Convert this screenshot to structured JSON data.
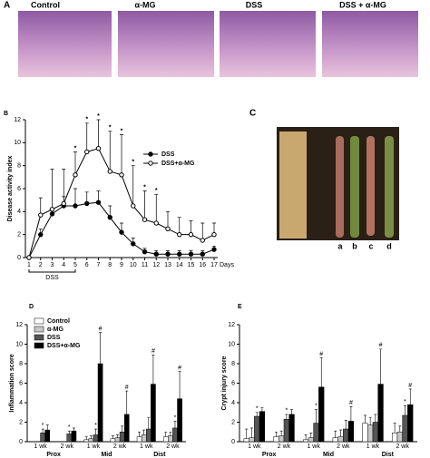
{
  "panels": {
    "A": {
      "label": "A",
      "captions": [
        "Control",
        "α-MG",
        "DSS",
        "DSS + α-MG"
      ]
    },
    "C": {
      "label": "C",
      "lanes": [
        "a",
        "b",
        "c",
        "d"
      ]
    }
  },
  "chart_data": [
    {
      "type": "line",
      "panel": "B",
      "xlabel": "Days",
      "ylabel": "Disease activity index",
      "annotation": "DSS",
      "x": [
        1,
        2,
        3,
        4,
        5,
        6,
        7,
        8,
        9,
        10,
        11,
        12,
        13,
        14,
        15,
        16,
        17
      ],
      "xlim": [
        1,
        17
      ],
      "xticks": [
        1,
        2,
        3,
        4,
        5,
        6,
        7,
        8,
        9,
        10,
        11,
        12,
        13,
        14,
        15,
        16,
        17
      ],
      "ylim": [
        0,
        12
      ],
      "yticks": [
        0,
        2,
        4,
        6,
        8,
        10,
        12
      ],
      "grid": false,
      "legend": "upper right",
      "series": [
        {
          "name": "DSS",
          "color": "#000000",
          "marker": "filled",
          "values": [
            0,
            2,
            3.8,
            4.5,
            4.5,
            4.7,
            4.8,
            3.5,
            2.2,
            1.2,
            0.5,
            0.3,
            0.3,
            0.3,
            0.3,
            0.3,
            0.7
          ],
          "errors": [
            0,
            0.5,
            0.5,
            0.8,
            1.5,
            1,
            1,
            1,
            0.8,
            0.5,
            0.3,
            0.3,
            0.3,
            0.3,
            0.3,
            0.3,
            0.3
          ],
          "markers": [
            null,
            null,
            null,
            null,
            null,
            null,
            null,
            null,
            null,
            null,
            null,
            null,
            null,
            null,
            null,
            null,
            null
          ]
        },
        {
          "name": "DSS+α-MG",
          "color": "#000000",
          "marker": "open",
          "values": [
            0,
            3.7,
            4.2,
            4.7,
            7.2,
            9.2,
            9.5,
            7.5,
            7.2,
            4.5,
            3.3,
            3.0,
            2.5,
            2.0,
            2.0,
            1.5,
            2.0
          ],
          "errors": [
            0,
            1.5,
            3.5,
            3,
            2,
            2.5,
            2.5,
            3.5,
            3.5,
            3.5,
            2.5,
            2.5,
            1.5,
            1.5,
            1.2,
            1.5,
            1
          ],
          "markers": [
            null,
            null,
            null,
            null,
            "*",
            "*",
            "*",
            "*",
            "*",
            "*",
            "*",
            "*",
            null,
            null,
            null,
            null,
            null
          ]
        }
      ]
    },
    {
      "type": "bar",
      "panel": "D",
      "ylabel": "Inflammation score",
      "categories": [
        "1 wk",
        "2 wk",
        "1 wk",
        "2 wk",
        "1 wk",
        "2 wk"
      ],
      "groups": [
        "Prox",
        "Mid",
        "Dist"
      ],
      "ylim": [
        0,
        12
      ],
      "yticks": [
        0,
        2,
        4,
        6,
        8,
        10,
        12
      ],
      "grid": false,
      "legend": "upper left",
      "series": [
        {
          "name": "Control",
          "color": "#ffffff",
          "values": [
            0,
            0,
            0.2,
            0.3,
            0.5,
            0.5
          ],
          "errors": [
            0,
            0,
            0.3,
            0.3,
            0.5,
            0.5
          ],
          "markers": [
            null,
            null,
            null,
            null,
            null,
            null
          ]
        },
        {
          "name": "α-MG",
          "color": "#c8c8c8",
          "values": [
            0,
            0,
            0.3,
            0.4,
            0.7,
            0.6
          ],
          "errors": [
            0,
            0,
            0.3,
            0.3,
            0.5,
            0.4
          ],
          "markers": [
            null,
            null,
            null,
            null,
            null,
            null
          ]
        },
        {
          "name": "DSS",
          "color": "#555555",
          "values": [
            0.9,
            0.8,
            0.7,
            1.0,
            1.3,
            1.4
          ],
          "errors": [
            0.4,
            0.3,
            0.6,
            0.6,
            1.2,
            0.7
          ],
          "markers": [
            "*",
            "*",
            "*",
            null,
            null,
            "*"
          ]
        },
        {
          "name": "DSS+α-MG",
          "color": "#000000",
          "values": [
            1.2,
            1.1,
            8.0,
            2.8,
            5.9,
            4.4
          ],
          "errors": [
            0.5,
            0.3,
            3.2,
            2.4,
            3.0,
            2.8
          ],
          "markers": [
            null,
            null,
            "#",
            "#",
            "#",
            "#"
          ]
        }
      ]
    },
    {
      "type": "bar",
      "panel": "E",
      "ylabel": "Crypt injury score",
      "categories": [
        "1 wk",
        "2 wk",
        "1 wk",
        "2 wk",
        "1 wk",
        "2 wk"
      ],
      "groups": [
        "Prox",
        "Mid",
        "Dist"
      ],
      "ylim": [
        0,
        12
      ],
      "yticks": [
        0,
        2,
        4,
        6,
        8,
        10,
        12
      ],
      "grid": false,
      "series": [
        {
          "name": "Control",
          "color": "#ffffff",
          "values": [
            0.3,
            0.5,
            0.2,
            0.4,
            1.9,
            0.9
          ],
          "errors": [
            1,
            0.5,
            0.5,
            0.7,
            0.8,
            1
          ],
          "markers": [
            null,
            null,
            null,
            null,
            null,
            null
          ]
        },
        {
          "name": "α-MG",
          "color": "#c8c8c8",
          "values": [
            0.4,
            0.6,
            0.4,
            0.5,
            1.7,
            1.0
          ],
          "errors": [
            1,
            0.5,
            0.5,
            0.7,
            0.8,
            0.6
          ],
          "markers": [
            null,
            null,
            null,
            null,
            null,
            null
          ]
        },
        {
          "name": "DSS",
          "color": "#555555",
          "values": [
            2.6,
            2.3,
            1.9,
            1.3,
            2.0,
            2.7
          ],
          "errors": [
            0.4,
            0.5,
            1.4,
            0.9,
            0.8,
            1
          ],
          "markers": [
            "*",
            "*",
            "*",
            null,
            null,
            "*"
          ]
        },
        {
          "name": "DSS+α-MG",
          "color": "#000000",
          "values": [
            3.1,
            2.8,
            5.6,
            2.1,
            5.9,
            3.8
          ],
          "errors": [
            0.4,
            0.5,
            3,
            1.5,
            3.6,
            1.6
          ],
          "markers": [
            null,
            null,
            "#",
            "#",
            "#",
            "#"
          ]
        }
      ]
    }
  ]
}
